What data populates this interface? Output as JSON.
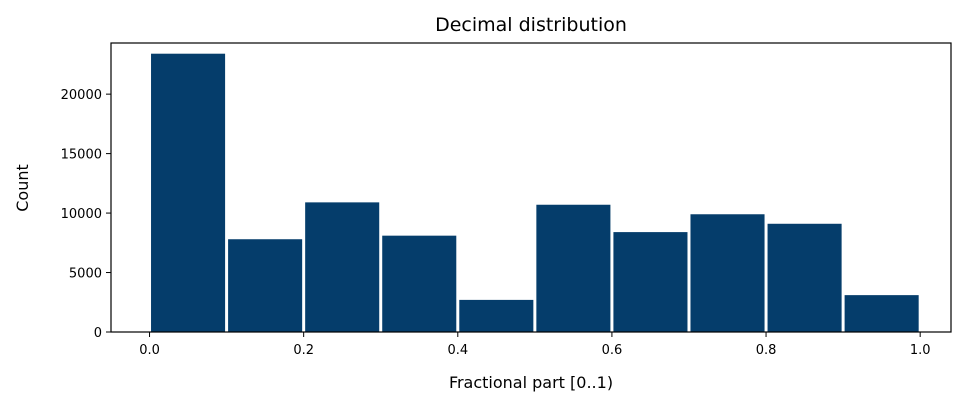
{
  "chart_data": {
    "type": "bar",
    "title": "Decimal distribution",
    "xlabel": "Fractional part [0..1)",
    "ylabel": "Count",
    "bin_edges": [
      0.0,
      0.1,
      0.2,
      0.3,
      0.4,
      0.5,
      0.6,
      0.7,
      0.8,
      0.9,
      1.0
    ],
    "values": [
      23400,
      7800,
      10900,
      8100,
      2700,
      10700,
      8400,
      9900,
      9100,
      3100
    ],
    "xlim": [
      -0.05,
      1.04
    ],
    "ylim": [
      0,
      24300
    ],
    "xticks": [
      {
        "value": 0.0,
        "label": "0.0"
      },
      {
        "value": 0.2,
        "label": "0.2"
      },
      {
        "value": 0.4,
        "label": "0.4"
      },
      {
        "value": 0.6,
        "label": "0.6"
      },
      {
        "value": 0.8,
        "label": "0.8"
      },
      {
        "value": 1.0,
        "label": "1.0"
      }
    ],
    "yticks": [
      {
        "value": 0,
        "label": "0"
      },
      {
        "value": 5000,
        "label": "5000"
      },
      {
        "value": 10000,
        "label": "10000"
      },
      {
        "value": 15000,
        "label": "15000"
      },
      {
        "value": 20000,
        "label": "20000"
      }
    ],
    "bar_color": "#053d6b",
    "grid": false,
    "legend": "none"
  }
}
